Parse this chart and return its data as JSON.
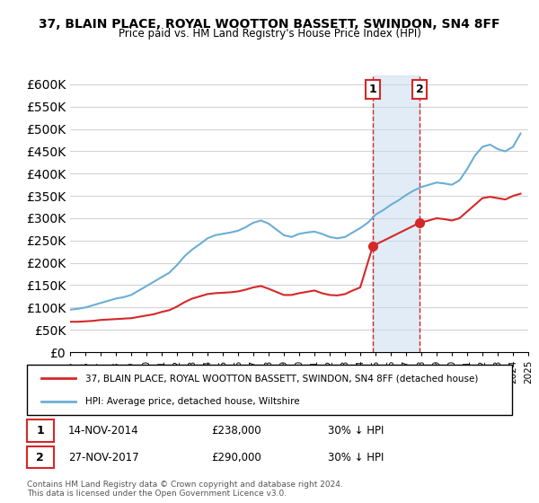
{
  "title": "37, BLAIN PLACE, ROYAL WOOTTON BASSETT, SWINDON, SN4 8FF",
  "subtitle": "Price paid vs. HM Land Registry's House Price Index (HPI)",
  "legend_line1": "37, BLAIN PLACE, ROYAL WOOTTON BASSETT, SWINDON, SN4 8FF (detached house)",
  "legend_line2": "HPI: Average price, detached house, Wiltshire",
  "annotation1_label": "1",
  "annotation1_date": "14-NOV-2014",
  "annotation1_price": "£238,000",
  "annotation1_hpi": "30% ↓ HPI",
  "annotation2_label": "2",
  "annotation2_date": "27-NOV-2017",
  "annotation2_price": "£290,000",
  "annotation2_hpi": "30% ↓ HPI",
  "footer": "Contains HM Land Registry data © Crown copyright and database right 2024.\nThis data is licensed under the Open Government Licence v3.0.",
  "hpi_color": "#6baed6",
  "price_color": "#d62728",
  "annotation_vline_color": "#d62728",
  "shade_color": "#c6dbef",
  "background_color": "#ffffff",
  "ylim": [
    0,
    620000
  ],
  "yticks": [
    0,
    50000,
    100000,
    150000,
    200000,
    250000,
    300000,
    350000,
    400000,
    450000,
    500000,
    550000,
    600000
  ],
  "hpi_x": [
    1995.0,
    1995.5,
    1996.0,
    1996.5,
    1997.0,
    1997.5,
    1998.0,
    1998.5,
    1999.0,
    1999.5,
    2000.0,
    2000.5,
    2001.0,
    2001.5,
    2002.0,
    2002.5,
    2003.0,
    2003.5,
    2004.0,
    2004.5,
    2005.0,
    2005.5,
    2006.0,
    2006.5,
    2007.0,
    2007.5,
    2008.0,
    2008.5,
    2009.0,
    2009.5,
    2010.0,
    2010.5,
    2011.0,
    2011.5,
    2012.0,
    2012.5,
    2013.0,
    2013.5,
    2014.0,
    2014.5,
    2015.0,
    2015.5,
    2016.0,
    2016.5,
    2017.0,
    2017.5,
    2018.0,
    2018.5,
    2019.0,
    2019.5,
    2020.0,
    2020.5,
    2021.0,
    2021.5,
    2022.0,
    2022.5,
    2023.0,
    2023.5,
    2024.0,
    2024.5
  ],
  "hpi_y": [
    95000,
    97000,
    100000,
    105000,
    110000,
    115000,
    120000,
    123000,
    128000,
    138000,
    148000,
    158000,
    168000,
    178000,
    195000,
    215000,
    230000,
    242000,
    255000,
    262000,
    265000,
    268000,
    272000,
    280000,
    290000,
    295000,
    288000,
    275000,
    262000,
    258000,
    265000,
    268000,
    270000,
    265000,
    258000,
    255000,
    258000,
    268000,
    278000,
    290000,
    308000,
    318000,
    330000,
    340000,
    352000,
    362000,
    370000,
    375000,
    380000,
    378000,
    375000,
    385000,
    410000,
    440000,
    460000,
    465000,
    455000,
    450000,
    460000,
    490000
  ],
  "price_x": [
    1995.0,
    1995.5,
    1996.0,
    1996.5,
    1997.0,
    1997.5,
    1998.0,
    1998.5,
    1999.0,
    1999.5,
    2000.0,
    2000.5,
    2001.0,
    2001.5,
    2002.0,
    2002.5,
    2003.0,
    2003.5,
    2004.0,
    2004.5,
    2005.0,
    2005.5,
    2006.0,
    2006.5,
    2007.0,
    2007.5,
    2008.0,
    2008.5,
    2009.0,
    2009.5,
    2010.0,
    2010.5,
    2011.0,
    2011.5,
    2012.0,
    2012.5,
    2013.0,
    2013.5,
    2014.0,
    2014.83,
    2017.9,
    2018.5,
    2019.0,
    2019.5,
    2020.0,
    2020.5,
    2021.0,
    2021.5,
    2022.0,
    2022.5,
    2023.0,
    2023.5,
    2024.0,
    2024.5
  ],
  "price_y": [
    68000,
    68000,
    69000,
    70000,
    72000,
    73000,
    74000,
    75000,
    76000,
    79000,
    82000,
    85000,
    90000,
    94000,
    102000,
    112000,
    120000,
    125000,
    130000,
    132000,
    133000,
    134000,
    136000,
    140000,
    145000,
    148000,
    142000,
    135000,
    128000,
    128000,
    132000,
    135000,
    138000,
    132000,
    128000,
    127000,
    130000,
    138000,
    145000,
    238000,
    290000,
    295000,
    300000,
    298000,
    295000,
    300000,
    315000,
    330000,
    345000,
    348000,
    345000,
    342000,
    350000,
    355000
  ],
  "sale1_x": 2014.83,
  "sale1_y": 238000,
  "sale2_x": 2017.9,
  "sale2_y": 290000,
  "shade_x1": 2014.83,
  "shade_x2": 2017.9,
  "xmin": 1995,
  "xmax": 2025
}
